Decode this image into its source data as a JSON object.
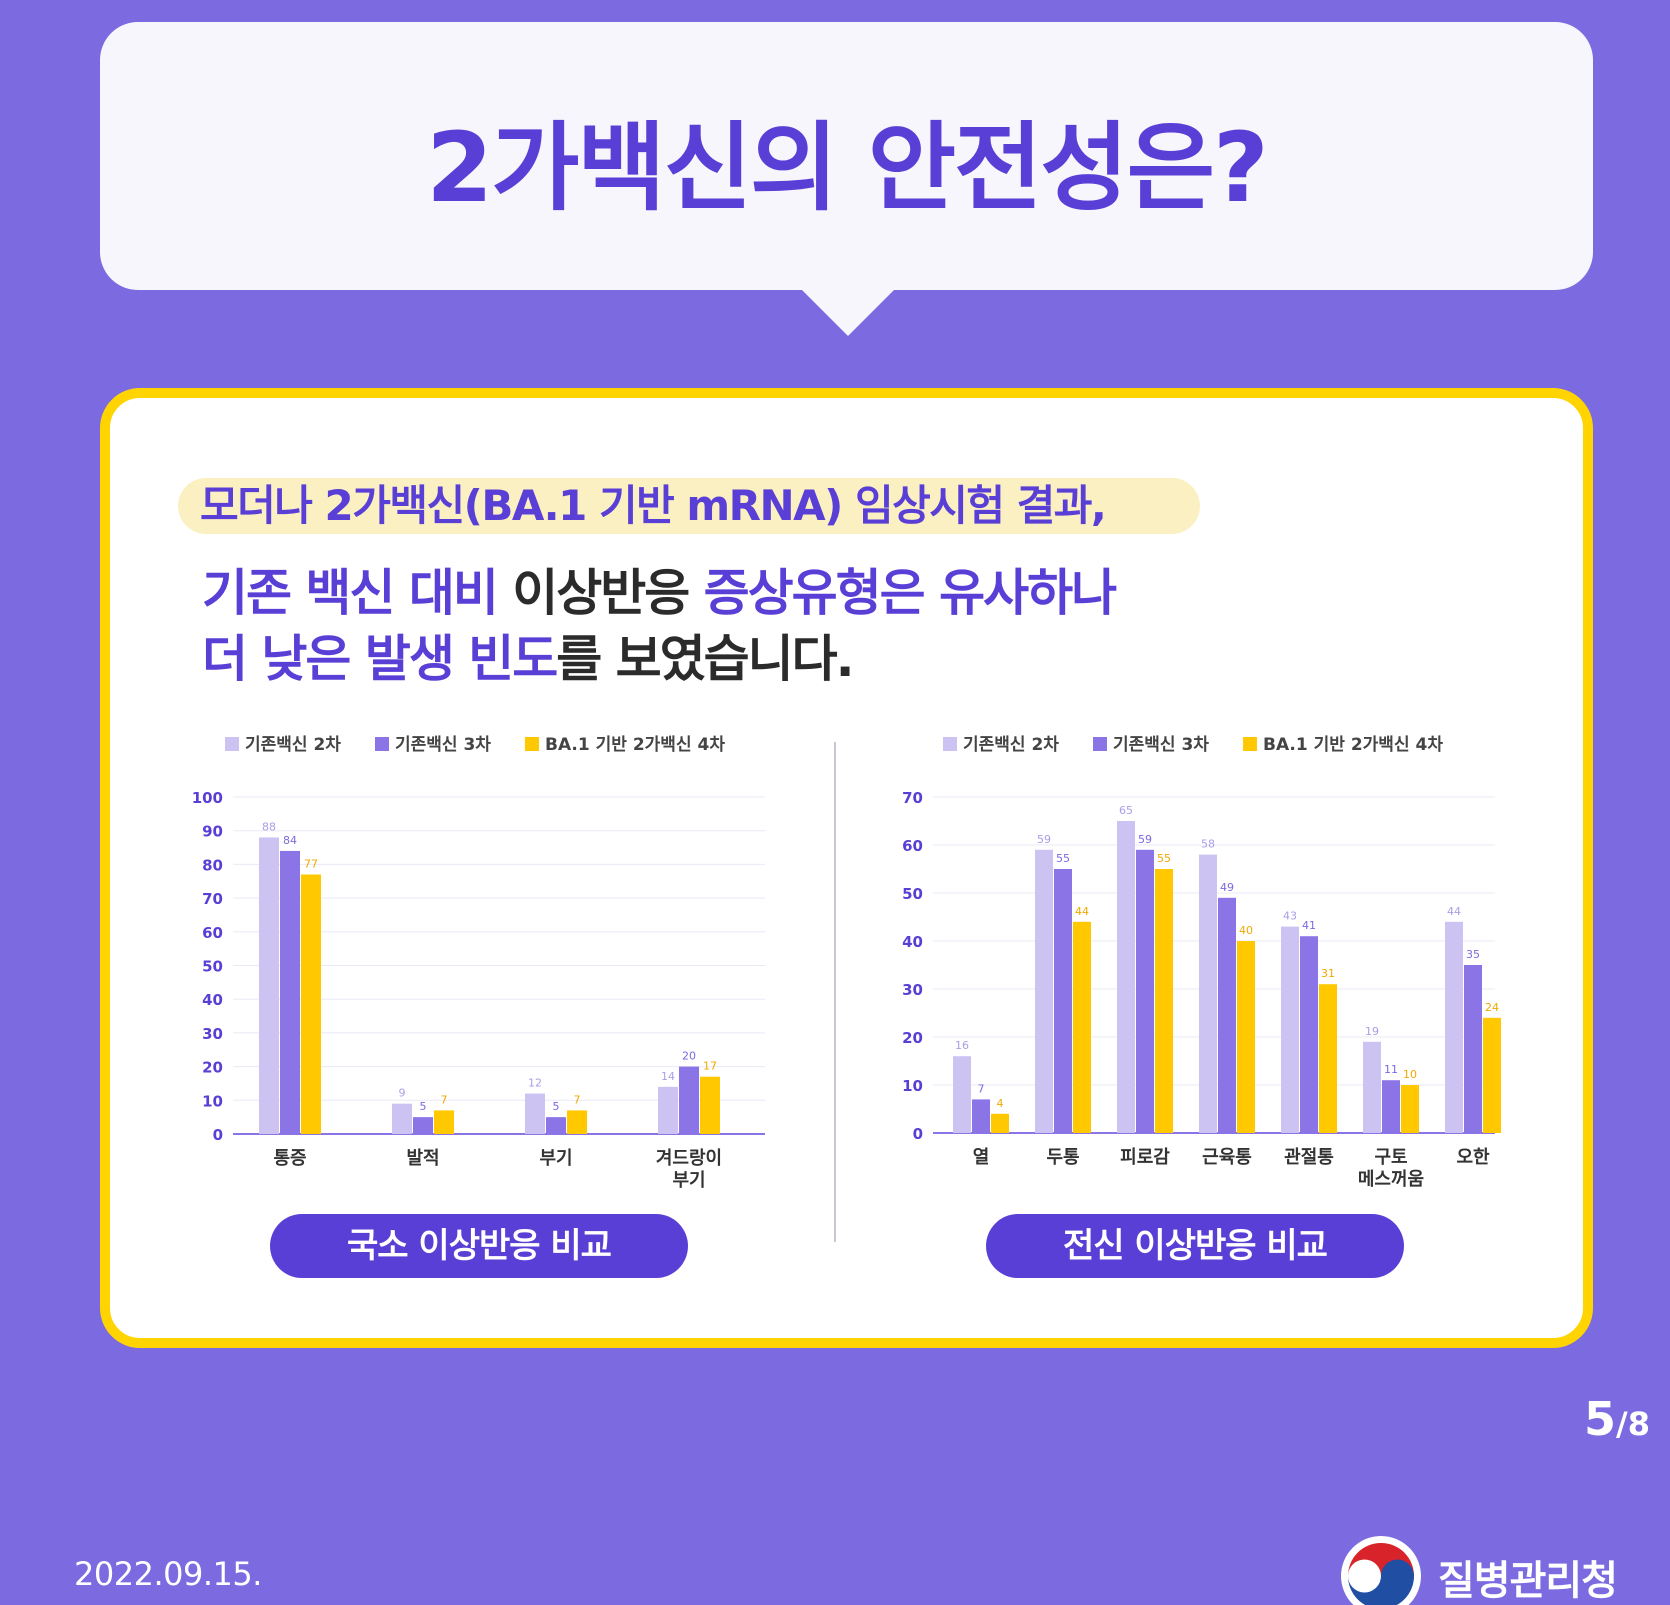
{
  "title": "2가백신의 안전성은?",
  "subtitle": "모더나 2가백신(BA.1 기반 mRNA) 임상시험 결과,",
  "description": {
    "line1_a": "기존 백신 대비 ",
    "line1_b": "이상반응 ",
    "line1_c": "증상유형은 유사하나",
    "line2_a": "더 낮은 발생 빈도",
    "line2_b": "를 보였습니다."
  },
  "colors": {
    "series1": "#cdc3f3",
    "series2": "#8b74e6",
    "series3": "#ffc800",
    "accent": "#5a3fd6",
    "background": "#7b6ae0",
    "card_border": "#ffd400"
  },
  "chart_data": [
    {
      "type": "bar",
      "title": "국소 이상반응 비교",
      "categories": [
        [
          "통증"
        ],
        [
          "발적"
        ],
        [
          "부기"
        ],
        [
          "겨드랑이",
          "부기"
        ]
      ],
      "series": [
        {
          "name": "기존백신 2차",
          "values": [
            88,
            9,
            12,
            14
          ]
        },
        {
          "name": "기존백신 3차",
          "values": [
            84,
            5,
            5,
            20
          ]
        },
        {
          "name": "BA.1 기반 2가백신 4차",
          "values": [
            77,
            7,
            7,
            17
          ]
        }
      ],
      "ylim": [
        0,
        100
      ],
      "yticks": [
        0,
        10,
        20,
        30,
        40,
        50,
        60,
        70,
        80,
        90,
        100
      ],
      "grid": true,
      "legend": "top-left"
    },
    {
      "type": "bar",
      "title": "전신 이상반응 비교",
      "categories": [
        [
          "열"
        ],
        [
          "두통"
        ],
        [
          "피로감"
        ],
        [
          "근육통"
        ],
        [
          "관절통"
        ],
        [
          "구토",
          "메스꺼움"
        ],
        [
          "오한"
        ]
      ],
      "series": [
        {
          "name": "기존백신 2차",
          "values": [
            16,
            59,
            65,
            58,
            43,
            19,
            44
          ]
        },
        {
          "name": "기존백신 3차",
          "values": [
            7,
            55,
            59,
            49,
            41,
            11,
            35
          ]
        },
        {
          "name": "BA.1 기반 2가백신 4차",
          "values": [
            4,
            44,
            55,
            40,
            31,
            10,
            24
          ]
        }
      ],
      "ylim": [
        0,
        70
      ],
      "yticks": [
        0,
        10,
        20,
        30,
        40,
        50,
        60,
        70
      ],
      "grid": true,
      "legend": "top-left"
    }
  ],
  "pagination": {
    "current": "5",
    "total": "/8"
  },
  "date": "2022.09.15.",
  "organization": "질병관리청"
}
